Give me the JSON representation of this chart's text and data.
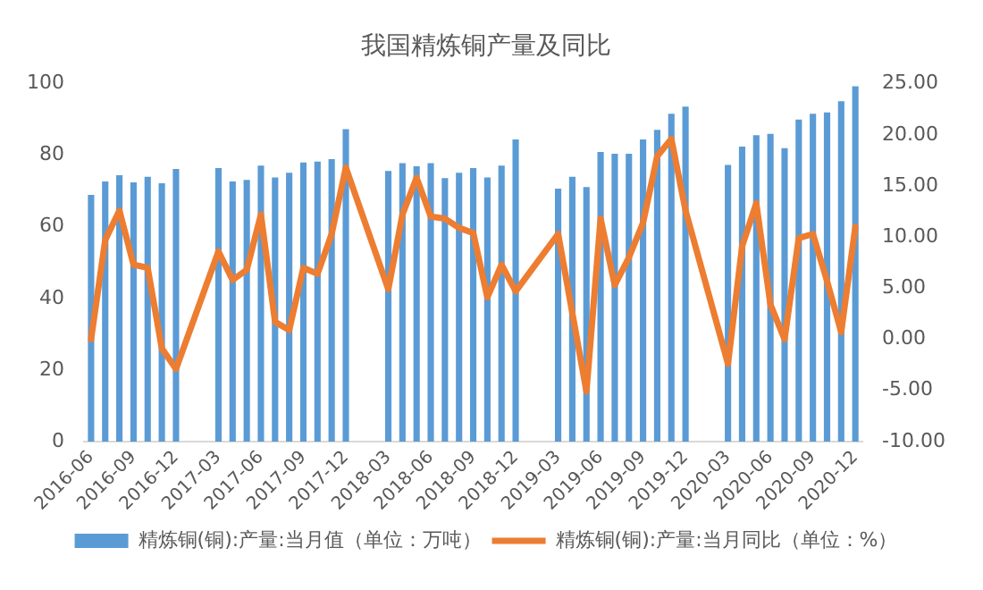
{
  "chart_data": {
    "type": "bar",
    "title": "我国精炼铜产量及同比",
    "categories": [
      "2016-06",
      null,
      null,
      "2016-09",
      null,
      null,
      "2016-12",
      null,
      null,
      "2017-03",
      null,
      null,
      "2017-06",
      null,
      null,
      "2017-09",
      null,
      null,
      "2017-12",
      null,
      null,
      "2018-03",
      null,
      null,
      "2018-06",
      null,
      null,
      "2018-09",
      null,
      null,
      "2018-12",
      null,
      null,
      "2019-03",
      null,
      null,
      "2019-06",
      null,
      null,
      "2019-09",
      null,
      null,
      "2019-12",
      null,
      null,
      "2020-03",
      null,
      null,
      "2020-06",
      null,
      null,
      "2020-09",
      null,
      null,
      "2020-12"
    ],
    "series": [
      {
        "name": "精炼铜(铜):产量:当月值（单位：万吨）",
        "color": "#5b9bd5",
        "values": [
          68.9,
          72.7,
          74.4,
          72.4,
          74,
          72.2,
          76.2,
          null,
          null,
          76.4,
          72.7,
          73.1,
          77.1,
          73.8,
          75.1,
          78,
          78.2,
          78.9,
          87.3,
          null,
          null,
          75.6,
          77.8,
          76.9,
          77.8,
          73.6,
          75.1,
          76.4,
          73.8,
          77.1,
          84.4,
          null,
          null,
          70.7,
          74,
          71.1,
          80.9,
          80.4,
          80.4,
          84.4,
          87.1,
          91.6,
          93.6,
          null,
          null,
          77.3,
          82.4,
          85.6,
          86,
          82,
          90,
          91.6,
          92,
          95.1,
          99.3
        ]
      },
      {
        "name": "精炼铜(铜):产量:当月同比（单位：%）",
        "type": "line",
        "axis": "y2",
        "color": "#ed7d31",
        "values": [
          0,
          9.7,
          12.6,
          7.3,
          7,
          -0.9,
          -2.9,
          null,
          null,
          8.6,
          5.8,
          6.8,
          12.2,
          1.7,
          0.9,
          7,
          6.4,
          10.3,
          16.8,
          null,
          null,
          4.9,
          12.2,
          15.8,
          12,
          11.8,
          10.9,
          10.4,
          4.1,
          7.3,
          4.7,
          null,
          null,
          10.3,
          2.6,
          -5.1,
          11.8,
          5.3,
          8,
          11.4,
          17.9,
          19.6,
          12.6,
          null,
          null,
          -2.4,
          9.1,
          13.3,
          3.4,
          0,
          9.9,
          10.3,
          5.7,
          0.7,
          11
        ]
      }
    ],
    "ylim": [
      0,
      100
    ],
    "yticks": [
      0,
      20,
      40,
      60,
      80,
      100
    ],
    "y2lim": [
      -10,
      25
    ],
    "y2ticks": [
      {
        "value": -10,
        "label": "-10.00"
      },
      {
        "value": -5,
        "label": "-5.00"
      },
      {
        "value": 0,
        "label": "0.00"
      },
      {
        "value": 5,
        "label": "5.00"
      },
      {
        "value": 10,
        "label": "10.00"
      },
      {
        "value": 15,
        "label": "15.00"
      },
      {
        "value": 20,
        "label": "20.00"
      },
      {
        "value": 25,
        "label": "25.00"
      }
    ],
    "legend": "bottom",
    "marker": "none",
    "line_style": "solid"
  }
}
